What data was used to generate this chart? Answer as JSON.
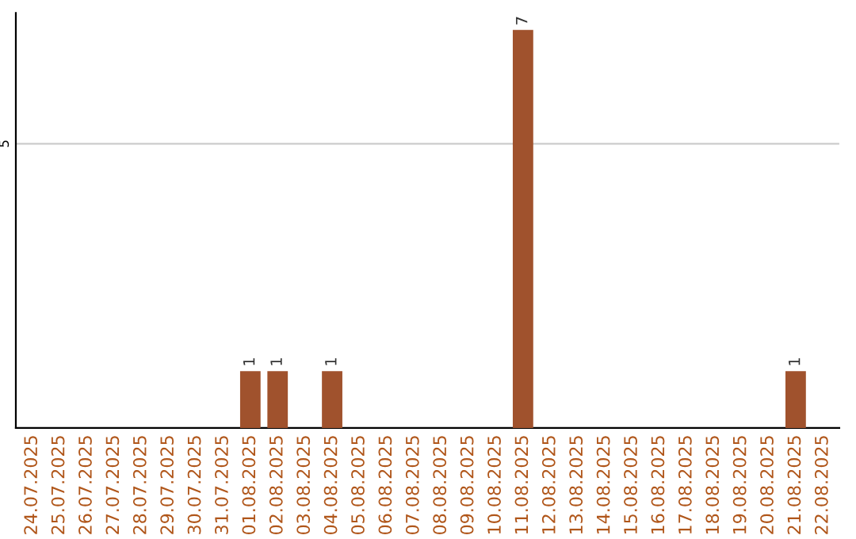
{
  "chart_data": {
    "type": "bar",
    "categories": [
      "24.07.2025",
      "25.07.2025",
      "26.07.2025",
      "27.07.2025",
      "28.07.2025",
      "29.07.2025",
      "30.07.2025",
      "31.07.2025",
      "01.08.2025",
      "02.08.2025",
      "03.08.2025",
      "04.08.2025",
      "05.08.2025",
      "06.08.2025",
      "07.08.2025",
      "08.08.2025",
      "09.08.2025",
      "10.08.2025",
      "11.08.2025",
      "12.08.2025",
      "13.08.2025",
      "14.08.2025",
      "15.08.2025",
      "16.08.2025",
      "17.08.2025",
      "18.08.2025",
      "19.08.2025",
      "20.08.2025",
      "21.08.2025",
      "22.08.2025"
    ],
    "values": [
      0,
      0,
      0,
      0,
      0,
      0,
      0,
      0,
      1,
      1,
      0,
      1,
      0,
      0,
      0,
      0,
      0,
      0,
      7,
      0,
      0,
      0,
      0,
      0,
      0,
      0,
      0,
      0,
      1,
      0
    ],
    "value_labels": [
      null,
      null,
      null,
      null,
      null,
      null,
      null,
      null,
      "1",
      "1",
      null,
      "1",
      null,
      null,
      null,
      null,
      null,
      null,
      "7",
      null,
      null,
      null,
      null,
      null,
      null,
      null,
      null,
      null,
      "1",
      null
    ],
    "color": "#a0522d",
    "ylim": [
      0,
      7.3
    ],
    "yticks": [
      5
    ],
    "grid": "y",
    "legend": false
  }
}
